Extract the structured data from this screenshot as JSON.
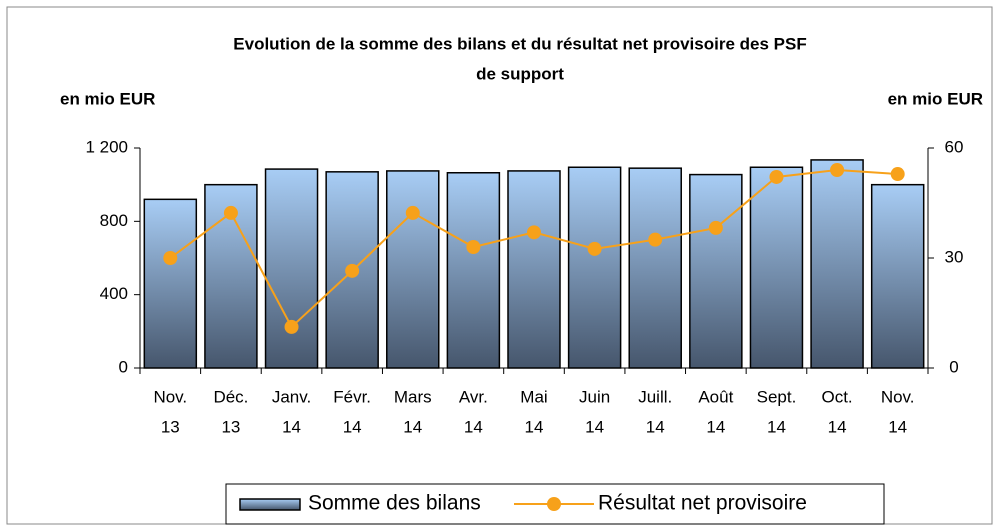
{
  "chart_data": {
    "type": "bar-line",
    "title": [
      "Evolution de la somme des bilans et du résultat net provisoire des PSF",
      "de support"
    ],
    "y_label": "en mio EUR",
    "y2_label": "en mio EUR",
    "categories": [
      [
        "Nov.",
        "13"
      ],
      [
        "Déc.",
        "13"
      ],
      [
        "Janv.",
        "14"
      ],
      [
        "Févr.",
        "14"
      ],
      [
        "Mars",
        "14"
      ],
      [
        "Avr.",
        "14"
      ],
      [
        "Mai",
        "14"
      ],
      [
        "Juin",
        "14"
      ],
      [
        "Juill.",
        "14"
      ],
      [
        "Août",
        "14"
      ],
      [
        "Sept.",
        "14"
      ],
      [
        "Oct.",
        "14"
      ],
      [
        "Nov.",
        "14"
      ]
    ],
    "series": [
      {
        "name": "Somme des bilans",
        "type": "bar",
        "color": "#a8cdf5",
        "values": [
          920,
          1000,
          1085,
          1070,
          1075,
          1065,
          1075,
          1095,
          1090,
          1055,
          1095,
          1135,
          1000
        ]
      },
      {
        "name": "Résultat net provisoire",
        "type": "line",
        "axis": "y2",
        "color": "#f7a11a",
        "values": [
          30,
          42.3,
          11.2,
          26.5,
          42.3,
          33,
          37,
          32.5,
          35,
          38.2,
          52.1,
          54,
          52.9
        ]
      }
    ],
    "ylim": [
      0,
      1200
    ],
    "yticks": [
      0,
      400,
      800,
      {
        "value": 1200,
        "label": "1 200"
      }
    ],
    "y2lim": [
      0,
      60
    ],
    "y2ticks": [
      0,
      30,
      60
    ]
  }
}
